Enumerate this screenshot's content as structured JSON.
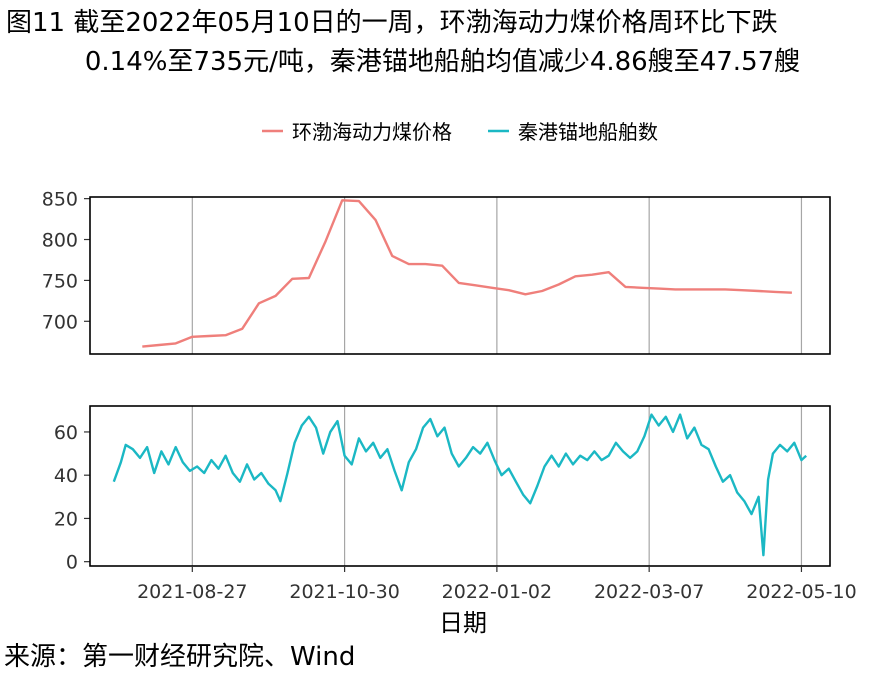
{
  "title_line1": "图11  截至2022年05月10日的一周，环渤海动力煤价格周环比下跌",
  "title_line2": "0.14%至735元/吨，秦港锚地船舶均值减少4.86艘至47.57艘",
  "source": "来源：第一财经研究院、Wind",
  "colors": {
    "price": "#ef7f7b",
    "ships": "#1bb8c4",
    "grid": "#a6a6a6"
  },
  "chart_data": {
    "type": "line",
    "xlabel": "日期",
    "x_ticks": [
      "2021-08-27",
      "2021-10-30",
      "2022-01-02",
      "2022-03-07",
      "2022-05-10"
    ],
    "xlim": [
      "2021-07-15",
      "2022-05-22"
    ],
    "legend": {
      "position": "top",
      "entries": [
        "环渤海动力煤价格",
        "秦港锚地船舶数"
      ]
    },
    "panels": [
      {
        "name": "环渤海动力煤价格",
        "ylim": [
          660,
          852
        ],
        "y_ticks": [
          700,
          750,
          800,
          850
        ],
        "grid_x": true,
        "points": [
          [
            "2021-08-06",
            669
          ],
          [
            "2021-08-13",
            671
          ],
          [
            "2021-08-20",
            673
          ],
          [
            "2021-08-27",
            681
          ],
          [
            "2021-09-03",
            682
          ],
          [
            "2021-09-10",
            683
          ],
          [
            "2021-09-17",
            691
          ],
          [
            "2021-09-24",
            722
          ],
          [
            "2021-10-01",
            731
          ],
          [
            "2021-10-08",
            752
          ],
          [
            "2021-10-15",
            753
          ],
          [
            "2021-10-22",
            798
          ],
          [
            "2021-10-29",
            848
          ],
          [
            "2021-11-05",
            847
          ],
          [
            "2021-11-12",
            824
          ],
          [
            "2021-11-19",
            780
          ],
          [
            "2021-11-26",
            770
          ],
          [
            "2021-12-03",
            770
          ],
          [
            "2021-12-10",
            768
          ],
          [
            "2021-12-17",
            747
          ],
          [
            "2021-12-24",
            744
          ],
          [
            "2021-12-31",
            741
          ],
          [
            "2022-01-07",
            738
          ],
          [
            "2022-01-14",
            733
          ],
          [
            "2022-01-21",
            737
          ],
          [
            "2022-01-28",
            745
          ],
          [
            "2022-02-04",
            755
          ],
          [
            "2022-02-11",
            757
          ],
          [
            "2022-02-18",
            760
          ],
          [
            "2022-02-25",
            742
          ],
          [
            "2022-03-04",
            741
          ],
          [
            "2022-03-11",
            740
          ],
          [
            "2022-03-18",
            739
          ],
          [
            "2022-03-25",
            739
          ],
          [
            "2022-04-01",
            739
          ],
          [
            "2022-04-08",
            739
          ],
          [
            "2022-04-15",
            738
          ],
          [
            "2022-04-22",
            737
          ],
          [
            "2022-04-29",
            736
          ],
          [
            "2022-05-06",
            735
          ]
        ]
      },
      {
        "name": "秦港锚地船舶数",
        "ylim": [
          -2,
          72
        ],
        "y_ticks": [
          0,
          20,
          40,
          60
        ],
        "grid_x": true,
        "points": [
          [
            "2021-07-25",
            37
          ],
          [
            "2021-07-28",
            46
          ],
          [
            "2021-07-30",
            54
          ],
          [
            "2021-08-02",
            52
          ],
          [
            "2021-08-05",
            48
          ],
          [
            "2021-08-08",
            53
          ],
          [
            "2021-08-11",
            41
          ],
          [
            "2021-08-14",
            51
          ],
          [
            "2021-08-17",
            45
          ],
          [
            "2021-08-20",
            53
          ],
          [
            "2021-08-23",
            46
          ],
          [
            "2021-08-26",
            42
          ],
          [
            "2021-08-29",
            44
          ],
          [
            "2021-09-01",
            41
          ],
          [
            "2021-09-04",
            47
          ],
          [
            "2021-09-07",
            43
          ],
          [
            "2021-09-10",
            49
          ],
          [
            "2021-09-13",
            41
          ],
          [
            "2021-09-16",
            37
          ],
          [
            "2021-09-19",
            45
          ],
          [
            "2021-09-22",
            38
          ],
          [
            "2021-09-25",
            41
          ],
          [
            "2021-09-28",
            36
          ],
          [
            "2021-10-01",
            33
          ],
          [
            "2021-10-03",
            28
          ],
          [
            "2021-10-06",
            41
          ],
          [
            "2021-10-09",
            55
          ],
          [
            "2021-10-12",
            63
          ],
          [
            "2021-10-15",
            67
          ],
          [
            "2021-10-18",
            62
          ],
          [
            "2021-10-21",
            50
          ],
          [
            "2021-10-24",
            60
          ],
          [
            "2021-10-27",
            65
          ],
          [
            "2021-10-30",
            49
          ],
          [
            "2021-11-02",
            45
          ],
          [
            "2021-11-05",
            57
          ],
          [
            "2021-11-08",
            51
          ],
          [
            "2021-11-11",
            55
          ],
          [
            "2021-11-14",
            48
          ],
          [
            "2021-11-17",
            52
          ],
          [
            "2021-11-20",
            42
          ],
          [
            "2021-11-23",
            33
          ],
          [
            "2021-11-26",
            46
          ],
          [
            "2021-11-29",
            52
          ],
          [
            "2021-12-02",
            62
          ],
          [
            "2021-12-05",
            66
          ],
          [
            "2021-12-08",
            58
          ],
          [
            "2021-12-11",
            62
          ],
          [
            "2021-12-14",
            50
          ],
          [
            "2021-12-17",
            44
          ],
          [
            "2021-12-20",
            48
          ],
          [
            "2021-12-23",
            53
          ],
          [
            "2021-12-26",
            50
          ],
          [
            "2021-12-29",
            55
          ],
          [
            "2022-01-01",
            47
          ],
          [
            "2022-01-04",
            40
          ],
          [
            "2022-01-07",
            43
          ],
          [
            "2022-01-10",
            37
          ],
          [
            "2022-01-13",
            31
          ],
          [
            "2022-01-16",
            27
          ],
          [
            "2022-01-19",
            35
          ],
          [
            "2022-01-22",
            44
          ],
          [
            "2022-01-25",
            49
          ],
          [
            "2022-01-28",
            44
          ],
          [
            "2022-01-31",
            50
          ],
          [
            "2022-02-03",
            45
          ],
          [
            "2022-02-06",
            49
          ],
          [
            "2022-02-09",
            47
          ],
          [
            "2022-02-12",
            51
          ],
          [
            "2022-02-15",
            47
          ],
          [
            "2022-02-18",
            49
          ],
          [
            "2022-02-21",
            55
          ],
          [
            "2022-02-24",
            51
          ],
          [
            "2022-02-27",
            48
          ],
          [
            "2022-03-02",
            51
          ],
          [
            "2022-03-05",
            58
          ],
          [
            "2022-03-08",
            68
          ],
          [
            "2022-03-11",
            63
          ],
          [
            "2022-03-14",
            67
          ],
          [
            "2022-03-17",
            60
          ],
          [
            "2022-03-20",
            68
          ],
          [
            "2022-03-23",
            57
          ],
          [
            "2022-03-26",
            62
          ],
          [
            "2022-03-29",
            54
          ],
          [
            "2022-04-01",
            52
          ],
          [
            "2022-04-04",
            44
          ],
          [
            "2022-04-07",
            37
          ],
          [
            "2022-04-10",
            40
          ],
          [
            "2022-04-13",
            32
          ],
          [
            "2022-04-16",
            28
          ],
          [
            "2022-04-19",
            22
          ],
          [
            "2022-04-22",
            30
          ],
          [
            "2022-04-24",
            3
          ],
          [
            "2022-04-26",
            38
          ],
          [
            "2022-04-28",
            50
          ],
          [
            "2022-05-01",
            54
          ],
          [
            "2022-05-04",
            51
          ],
          [
            "2022-05-07",
            55
          ],
          [
            "2022-05-10",
            47
          ],
          [
            "2022-05-12",
            49
          ]
        ]
      }
    ]
  }
}
